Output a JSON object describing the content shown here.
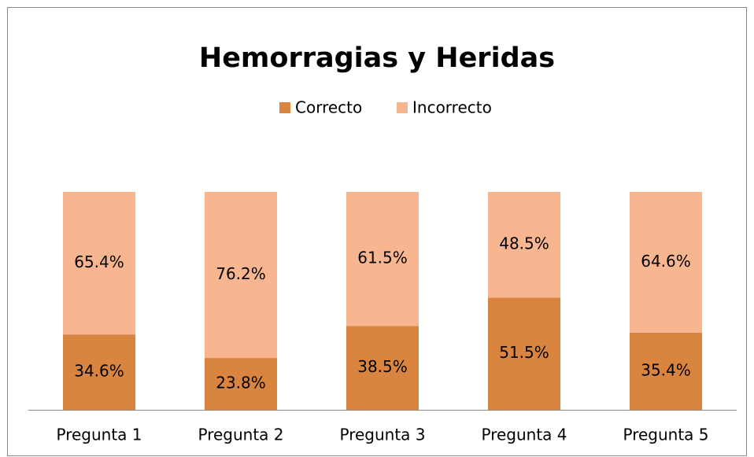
{
  "chart_data": {
    "type": "stacked_bar",
    "title": "Hemorragias y Heridas",
    "categories": [
      "Pregunta 1",
      "Pregunta 2",
      "Pregunta 3",
      "Pregunta 4",
      "Pregunta 5"
    ],
    "series": [
      {
        "name": "Correcto",
        "color": "#d9843f",
        "values": [
          34.6,
          23.8,
          38.5,
          51.5,
          35.4
        ],
        "value_labels": [
          "34.6%",
          "23.8%",
          "38.5%",
          "51.5%",
          "35.4%"
        ]
      },
      {
        "name": "Incorrecto",
        "color": "#f8b690",
        "values": [
          65.4,
          76.2,
          61.5,
          48.5,
          64.6
        ],
        "value_labels": [
          "65.4%",
          "76.2%",
          "61.5%",
          "48.5%",
          "64.6%"
        ]
      }
    ],
    "ylim": [
      0,
      100
    ],
    "legend": "top"
  }
}
